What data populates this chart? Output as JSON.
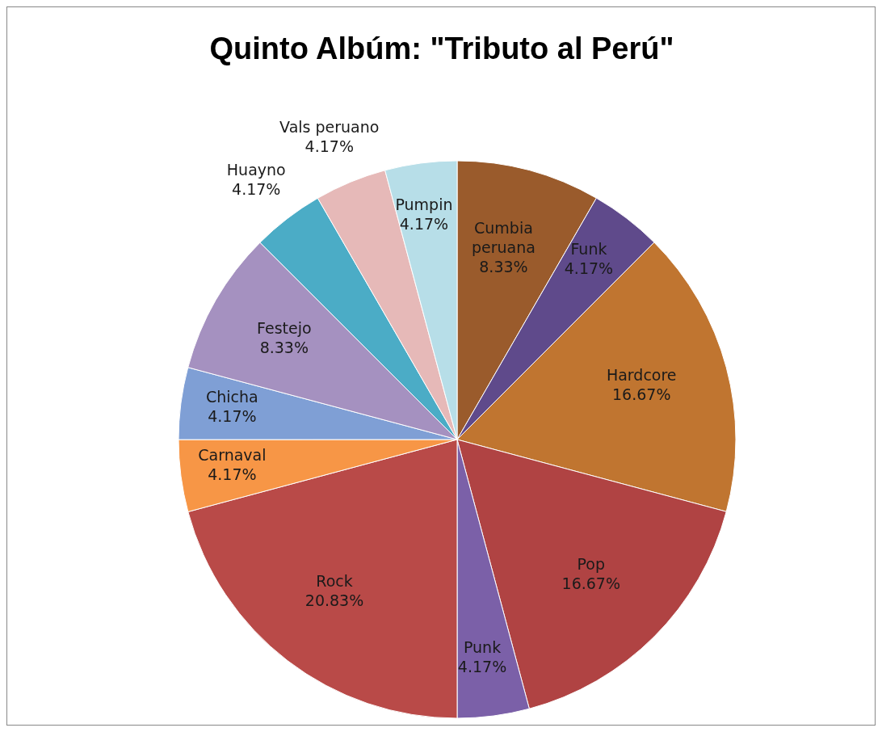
{
  "chart_data": {
    "type": "pie",
    "title": "Quinto Albúm: \"Tributo al Perú\"",
    "categories": [
      "Cumbia peruana",
      "Funk",
      "Hardcore",
      "Pop",
      "Punk",
      "Rock",
      "Carnaval",
      "Chicha",
      "Festejo",
      "Huayno",
      "Vals peruano",
      "Pumpin"
    ],
    "values": [
      8.33,
      4.17,
      16.67,
      16.67,
      4.17,
      20.83,
      4.17,
      4.17,
      8.33,
      4.17,
      4.17,
      4.17
    ],
    "value_labels": [
      "8.33%",
      "4.17%",
      "16.67%",
      "16.67%",
      "4.17%",
      "20.83%",
      "4.17%",
      "4.17%",
      "8.33%",
      "4.17%",
      "4.17%",
      "4.17%"
    ],
    "colors": [
      "#9a5b2c",
      "#5f4a8b",
      "#c07530",
      "#b04343",
      "#7b60a8",
      "#b94a48",
      "#f79646",
      "#7f9fd5",
      "#a591c0",
      "#4bacc6",
      "#e6b9b8",
      "#b7dee8"
    ],
    "legend": false
  }
}
